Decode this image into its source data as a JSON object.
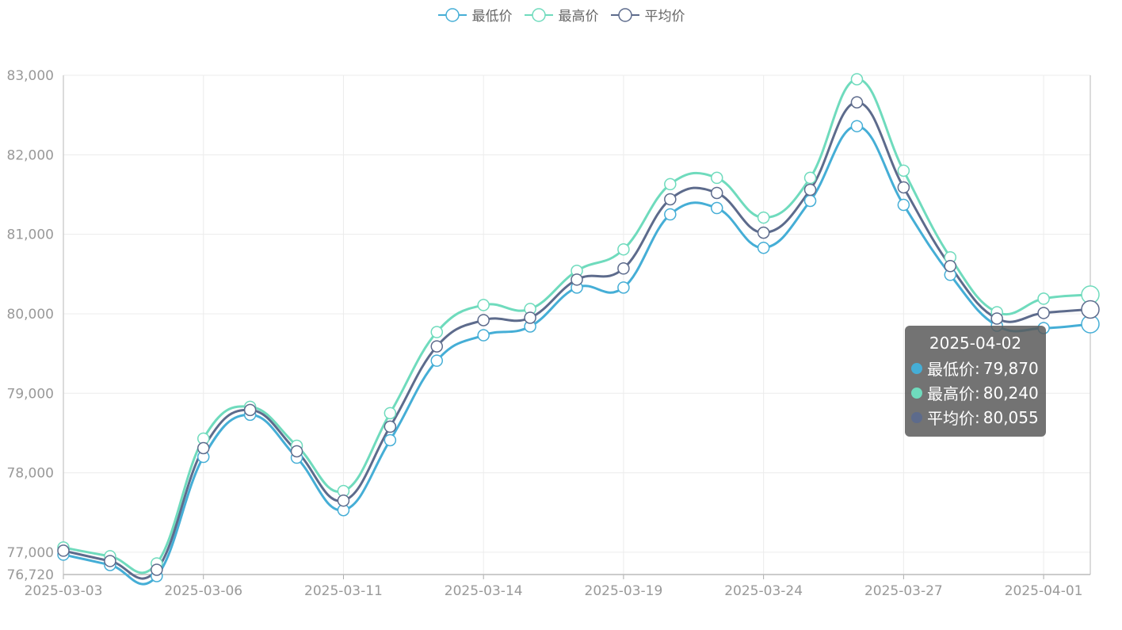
{
  "legend": {
    "items": [
      {
        "label": "最低价",
        "color": "#45aed6"
      },
      {
        "label": "最高价",
        "color": "#6fdbbd"
      },
      {
        "label": "平均价",
        "color": "#5d6b8c"
      }
    ]
  },
  "tooltip": {
    "date": "2025-04-02",
    "rows": [
      {
        "label": "最低价",
        "value": "79,870",
        "color": "#45aed6"
      },
      {
        "label": "最高价",
        "value": "80,240",
        "color": "#6fdbbd"
      },
      {
        "label": "平均价",
        "value": "80,055",
        "color": "#5d6b8c"
      }
    ]
  },
  "chart_data": {
    "type": "line",
    "smooth": true,
    "title": "",
    "xlabel": "",
    "ylabel": "",
    "ylim": [
      76720,
      83000
    ],
    "yticks": [
      "76,720",
      "77,000",
      "78,000",
      "79,000",
      "80,000",
      "81,000",
      "82,000",
      "83,000"
    ],
    "ytick_values": [
      76720,
      77000,
      78000,
      79000,
      80000,
      81000,
      82000,
      83000
    ],
    "x_tick_labels": [
      "2025-03-03",
      "2025-03-06",
      "2025-03-11",
      "2025-03-14",
      "2025-03-19",
      "2025-03-24",
      "2025-03-27",
      "2025-04-01"
    ],
    "x_tick_indices": [
      0,
      3,
      6,
      9,
      12,
      15,
      18,
      21
    ],
    "x": [
      "2025-03-03",
      "2025-03-04",
      "2025-03-05",
      "2025-03-06",
      "2025-03-07",
      "2025-03-10",
      "2025-03-11",
      "2025-03-12",
      "2025-03-13",
      "2025-03-14",
      "2025-03-17",
      "2025-03-18",
      "2025-03-19",
      "2025-03-20",
      "2025-03-21",
      "2025-03-24",
      "2025-03-25",
      "2025-03-26",
      "2025-03-27",
      "2025-03-28",
      "2025-03-31",
      "2025-04-01",
      "2025-04-02"
    ],
    "grid": true,
    "legend_position": "top-center",
    "highlight_index": 22,
    "series": [
      {
        "name": "最低价",
        "color": "#45aed6",
        "values": [
          76970,
          76840,
          76700,
          78200,
          78730,
          78190,
          77530,
          78410,
          79410,
          79730,
          79840,
          80330,
          80330,
          81250,
          81330,
          80830,
          81420,
          82360,
          81370,
          80490,
          79850,
          79820,
          79870
        ]
      },
      {
        "name": "最高价",
        "color": "#6fdbbd",
        "values": [
          77060,
          76950,
          76860,
          78430,
          78830,
          78340,
          77770,
          78750,
          79770,
          80110,
          80060,
          80540,
          80810,
          81630,
          81710,
          81210,
          81710,
          82950,
          81800,
          80710,
          80020,
          80190,
          80240
        ]
      },
      {
        "name": "平均价",
        "color": "#5d6b8c",
        "values": [
          77020,
          76890,
          76780,
          78310,
          78790,
          78270,
          77650,
          78580,
          79590,
          79920,
          79950,
          80430,
          80570,
          81440,
          81520,
          81020,
          81560,
          82660,
          81590,
          80600,
          79940,
          80010,
          80055
        ]
      }
    ]
  }
}
